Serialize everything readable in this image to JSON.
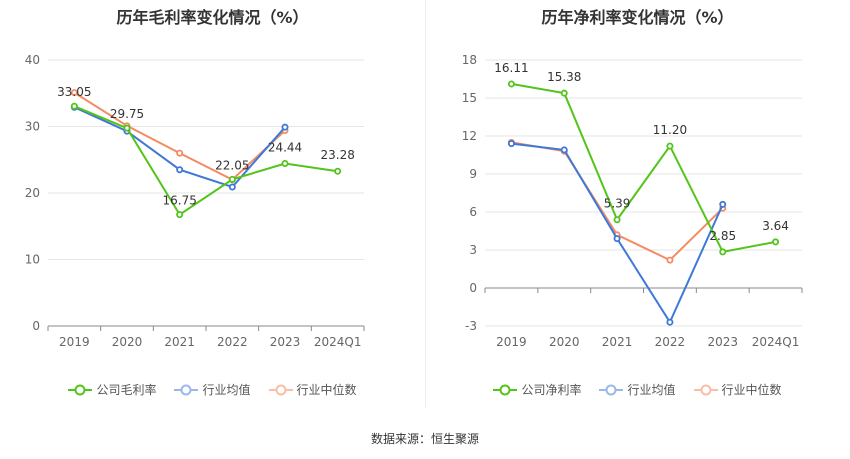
{
  "chart_data": [
    {
      "type": "line",
      "title": "历年毛利率变化情况（%）",
      "categories": [
        "2019",
        "2020",
        "2021",
        "2022",
        "2023",
        "2024Q1"
      ],
      "yticks": [
        0,
        10,
        20,
        30,
        40
      ],
      "ylim": [
        0,
        40
      ],
      "series": [
        {
          "name": "公司毛利率",
          "color": "#52c41a",
          "values": [
            33.05,
            29.75,
            16.75,
            22.05,
            24.44,
            23.28
          ],
          "labels": true
        },
        {
          "name": "行业均值",
          "color": "#3e78d8",
          "values": [
            32.9,
            29.3,
            23.5,
            20.9,
            29.9,
            null
          ],
          "labels": false
        },
        {
          "name": "行业中位数",
          "color": "#f38b63",
          "values": [
            35.1,
            30.1,
            26.0,
            22.0,
            29.4,
            null
          ],
          "labels": false
        }
      ],
      "legend": "bottom"
    },
    {
      "type": "line",
      "title": "历年净利率变化情况（%）",
      "categories": [
        "2019",
        "2020",
        "2021",
        "2022",
        "2023",
        "2024Q1"
      ],
      "yticks": [
        -3,
        0,
        3,
        6,
        9,
        12,
        15,
        18
      ],
      "ylim": [
        -3,
        18
      ],
      "series": [
        {
          "name": "公司净利率",
          "color": "#52c41a",
          "values": [
            16.11,
            15.38,
            5.39,
            11.2,
            2.85,
            3.64
          ],
          "labels": true
        },
        {
          "name": "行业均值",
          "color": "#3e78d8",
          "values": [
            11.4,
            10.9,
            3.9,
            -2.7,
            6.6,
            null
          ],
          "labels": false
        },
        {
          "name": "行业中位数",
          "color": "#f38b63",
          "values": [
            11.5,
            10.8,
            4.2,
            2.2,
            6.3,
            null
          ],
          "labels": false
        }
      ],
      "legend": "bottom"
    }
  ],
  "source": "数据来源：恒生聚源"
}
